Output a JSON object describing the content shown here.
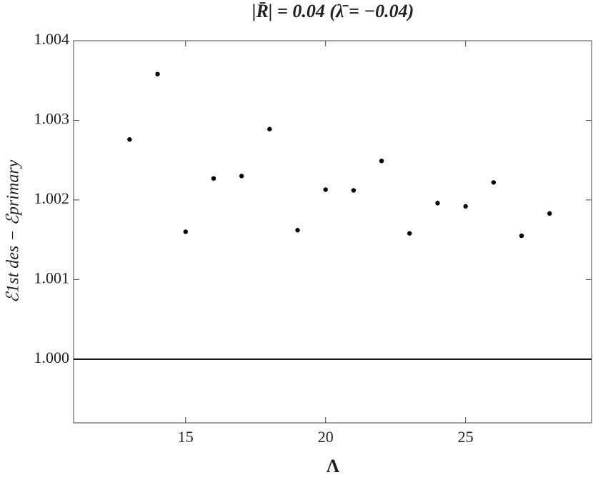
{
  "chart_data": {
    "type": "scatter",
    "title": "|R̄| = 0.04 (λ̄ = −0.04)",
    "xlabel": "Λ",
    "ylabel": "ℰ1st des − ℰprimary",
    "x": [
      13,
      14,
      15,
      16,
      17,
      18,
      19,
      20,
      21,
      22,
      23,
      24,
      25,
      26,
      27,
      28
    ],
    "series": [
      {
        "color": "#000000",
        "values": [
          1.00276,
          1.00358,
          1.0016,
          1.00227,
          1.0023,
          1.00289,
          1.00162,
          1.00213,
          1.00212,
          1.00249,
          1.00158,
          1.00196,
          1.00192,
          1.00222,
          1.00155,
          1.00183
        ]
      }
    ],
    "xlim": [
      11,
      29.5
    ],
    "xticks": [
      15,
      20,
      25
    ],
    "ylim": [
      0.9992,
      1.004
    ],
    "yticks": [
      {
        "value": 1.0,
        "label": "1.000"
      },
      1.001,
      1.002,
      1.003,
      1.004
    ],
    "hline": 1.0
  }
}
